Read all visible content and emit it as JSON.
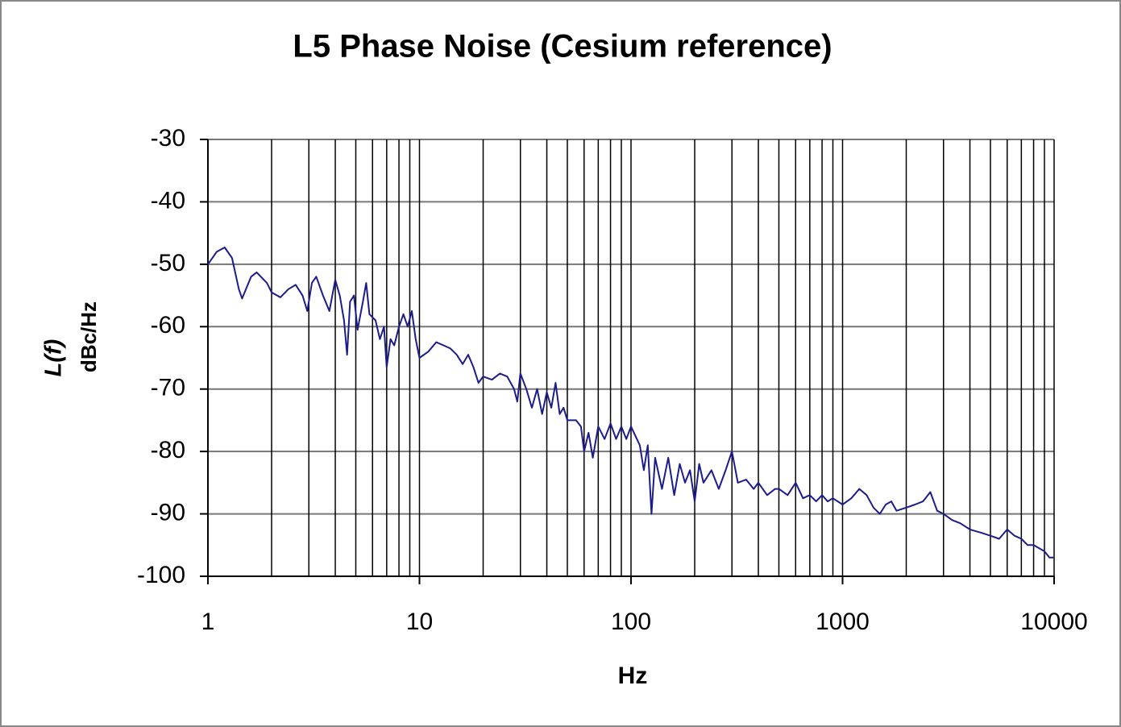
{
  "chart_data": {
    "type": "line",
    "title": "L5 Phase Noise (Cesium reference)",
    "ylabel": "L(f)",
    "ylabel_unit": "dBc/Hz",
    "xlabel": "Hz",
    "log_x": true,
    "grid": true,
    "color": "#1c1c8c",
    "xlim": [
      1,
      10000
    ],
    "xticks": [
      1,
      10,
      100,
      1000,
      10000
    ],
    "xminorticks": [
      2,
      3,
      4,
      5,
      6,
      7,
      8,
      9,
      20,
      30,
      40,
      50,
      60,
      70,
      80,
      90,
      200,
      300,
      400,
      500,
      600,
      700,
      800,
      900,
      2000,
      3000,
      4000,
      5000,
      6000,
      7000,
      8000,
      9000
    ],
    "ylim": [
      -100,
      -30
    ],
    "yticks": [
      -100,
      -90,
      -80,
      -70,
      -60,
      -50,
      -40,
      -30
    ],
    "x": [
      1,
      1.1,
      1.2,
      1.3,
      1.4,
      1.45,
      1.6,
      1.7,
      1.9,
      2,
      2.2,
      2.4,
      2.6,
      2.8,
      2.95,
      3.1,
      3.25,
      3.5,
      3.75,
      4,
      4.2,
      4.4,
      4.55,
      4.7,
      4.9,
      5.1,
      5.4,
      5.6,
      5.8,
      6.2,
      6.5,
      6.8,
      7,
      7.3,
      7.6,
      8,
      8.4,
      8.8,
      9.2,
      9.6,
      10,
      11,
      12,
      13,
      14,
      15,
      16,
      17,
      18,
      19,
      20,
      22,
      24,
      26,
      28,
      29,
      30,
      32,
      34,
      36,
      38,
      40,
      42,
      44,
      46,
      48,
      50,
      55,
      58,
      60,
      63,
      66,
      70,
      75,
      80,
      85,
      90,
      95,
      100,
      110,
      115,
      120,
      125,
      130,
      140,
      150,
      160,
      170,
      180,
      190,
      200,
      210,
      220,
      240,
      260,
      280,
      300,
      320,
      350,
      380,
      400,
      440,
      480,
      500,
      550,
      600,
      650,
      700,
      750,
      800,
      850,
      900,
      1000,
      1100,
      1200,
      1300,
      1400,
      1500,
      1600,
      1700,
      1800,
      2000,
      2200,
      2400,
      2600,
      2800,
      3000,
      3300,
      3600,
      4000,
      4500,
      5000,
      5500,
      6000,
      6500,
      7000,
      7500,
      8000,
      8500,
      9000,
      9500,
      10000
    ],
    "values": [
      -50,
      -48,
      -47.3,
      -49,
      -54,
      -55.5,
      -52,
      -51.3,
      -53,
      -54.5,
      -55.3,
      -54,
      -53.3,
      -55,
      -57.5,
      -53,
      -52,
      -55,
      -57.5,
      -52.5,
      -55,
      -59,
      -64.5,
      -56,
      -55,
      -60.5,
      -56,
      -53,
      -58,
      -59,
      -62,
      -60,
      -66.5,
      -62,
      -63,
      -60,
      -58,
      -60,
      -57.5,
      -62,
      -65,
      -64,
      -62.5,
      -63,
      -63.5,
      -64.5,
      -66,
      -64.5,
      -66.5,
      -69,
      -68,
      -68.5,
      -67.5,
      -68,
      -70,
      -72,
      -67.5,
      -70,
      -73,
      -70,
      -74,
      -70.5,
      -73,
      -69,
      -74,
      -73,
      -75,
      -75,
      -76,
      -80,
      -77,
      -81,
      -76,
      -78,
      -75.5,
      -78,
      -76,
      -78,
      -76,
      -79,
      -83,
      -79,
      -90,
      -81,
      -86,
      -81,
      -87,
      -82,
      -85,
      -83,
      -88,
      -82,
      -85,
      -83,
      -86,
      -83,
      -80,
      -85,
      -84.5,
      -86,
      -85,
      -87,
      -86,
      -86,
      -87,
      -85,
      -87.5,
      -87,
      -88,
      -87,
      -88,
      -87.5,
      -88.5,
      -87.5,
      -86,
      -87,
      -89,
      -90,
      -88.5,
      -88,
      -89.5,
      -89,
      -88.5,
      -88,
      -86.5,
      -89.5,
      -90,
      -91,
      -91.5,
      -92.5,
      -93,
      -93.5,
      -94,
      -92.5,
      -93.5,
      -94,
      -95,
      -95,
      -95.5,
      -96,
      -97,
      -97
    ]
  }
}
